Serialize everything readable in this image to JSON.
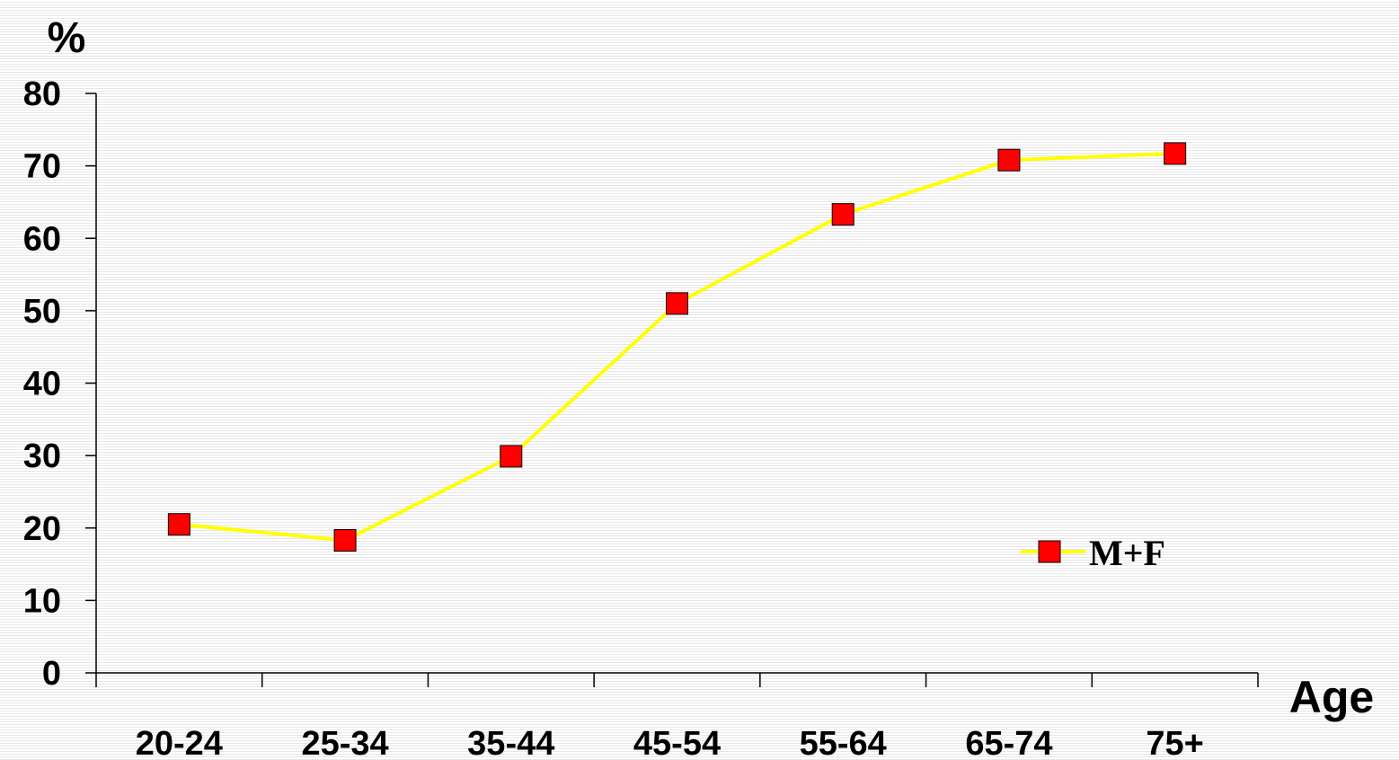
{
  "chart_data": {
    "type": "line",
    "categories": [
      "20-24",
      "25-34",
      "35-44",
      "45-54",
      "55-64",
      "65-74",
      "75+"
    ],
    "series": [
      {
        "name": "M+F",
        "values": [
          20.5,
          18.3,
          29.9,
          51.0,
          63.3,
          70.8,
          71.7
        ],
        "line_color": "#ffff00",
        "marker_color": "#ff0000",
        "marker": "square"
      }
    ],
    "ylabel": "%",
    "xlabel": "Age",
    "ylim": [
      0,
      80
    ],
    "yticks": [
      "0",
      "10",
      "20",
      "30",
      "40",
      "50",
      "60",
      "70",
      "80"
    ],
    "grid": false,
    "legend_position": "bottom-right"
  }
}
